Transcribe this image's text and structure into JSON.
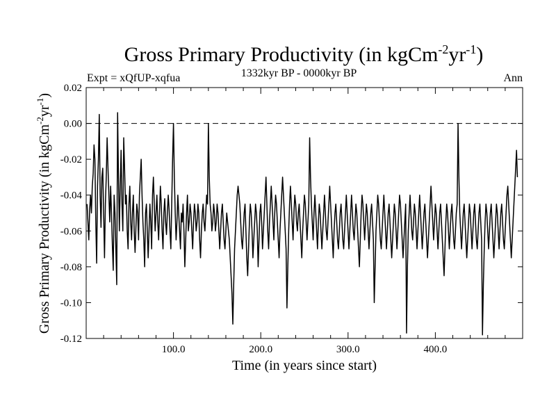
{
  "chart_data": {
    "type": "line",
    "title": "Gross Primary Productivity (in kgCm",
    "title_sup1": "-2",
    "title_mid": "yr",
    "title_sup2": "-1",
    "title_end": ")",
    "subtitle": "1332kyr BP - 0000kyr BP",
    "expt_label": "Expt = xQfUP-xqfua",
    "season_label": "Ann",
    "xlabel": "Time (in years since start)",
    "ylabel": "Gross Primary Productivity (in kgCm",
    "ylabel_sup1": "-2",
    "ylabel_mid": "yr",
    "ylabel_sup2": "-1",
    "ylabel_end": ")",
    "xlim": [
      0,
      500
    ],
    "ylim": [
      -0.12,
      0.02
    ],
    "xticks": [
      100,
      200,
      300,
      400
    ],
    "xtick_labels": [
      "100.0",
      "200.0",
      "300.0",
      "400.0"
    ],
    "yticks": [
      0.02,
      0.0,
      -0.02,
      -0.04,
      -0.06,
      -0.08,
      -0.1,
      -0.12
    ],
    "ytick_labels": [
      "0.02",
      "0.00",
      "-0.02",
      "-0.04",
      "-0.06",
      "-0.08",
      "-0.10",
      "-0.12"
    ],
    "reference_line": 0.0,
    "series": [
      {
        "name": "Ann",
        "x_start": 1,
        "x_step": 1,
        "values": [
          -0.045,
          -0.055,
          -0.065,
          -0.048,
          -0.04,
          -0.05,
          -0.035,
          -0.028,
          -0.012,
          -0.02,
          -0.055,
          -0.078,
          -0.035,
          -0.02,
          0.005,
          -0.04,
          -0.058,
          -0.03,
          -0.025,
          -0.05,
          -0.075,
          -0.045,
          -0.03,
          -0.008,
          -0.025,
          -0.04,
          -0.055,
          -0.035,
          -0.05,
          -0.068,
          -0.082,
          -0.04,
          -0.05,
          -0.07,
          -0.09,
          0.006,
          -0.03,
          -0.06,
          -0.035,
          -0.015,
          -0.045,
          -0.06,
          -0.008,
          -0.025,
          -0.045,
          -0.04,
          -0.06,
          -0.07,
          -0.045,
          -0.035,
          -0.055,
          -0.065,
          -0.05,
          -0.04,
          -0.06,
          -0.072,
          -0.058,
          -0.045,
          -0.05,
          -0.065,
          -0.04,
          -0.03,
          -0.02,
          -0.04,
          -0.055,
          -0.065,
          -0.08,
          -0.05,
          -0.045,
          -0.06,
          -0.075,
          -0.06,
          -0.045,
          -0.055,
          -0.07,
          -0.04,
          -0.03,
          -0.045,
          -0.06,
          -0.05,
          -0.04,
          -0.055,
          -0.065,
          -0.05,
          -0.035,
          -0.045,
          -0.06,
          -0.07,
          -0.05,
          -0.042,
          -0.055,
          -0.062,
          -0.05,
          -0.04,
          -0.048,
          -0.06,
          -0.07,
          -0.045,
          -0.02,
          0.0,
          -0.03,
          -0.05,
          -0.065,
          -0.055,
          -0.04,
          -0.05,
          -0.06,
          -0.07,
          -0.05,
          -0.055,
          -0.045,
          -0.06,
          -0.08,
          -0.065,
          -0.05,
          -0.04,
          -0.06,
          -0.055,
          -0.045,
          -0.05,
          -0.06,
          -0.07,
          -0.055,
          -0.045,
          -0.05,
          -0.06,
          -0.055,
          -0.045,
          -0.05,
          -0.065,
          -0.075,
          -0.06,
          -0.05,
          -0.045,
          -0.055,
          -0.06,
          -0.05,
          -0.04,
          -0.045,
          0.0,
          -0.03,
          -0.045,
          -0.05,
          -0.06,
          -0.055,
          -0.045,
          -0.05,
          -0.06,
          -0.055,
          -0.045,
          -0.05,
          -0.06,
          -0.07,
          -0.06,
          -0.05,
          -0.045,
          -0.055,
          -0.065,
          -0.07,
          -0.06,
          -0.05,
          -0.055,
          -0.06,
          -0.065,
          -0.075,
          -0.085,
          -0.095,
          -0.112,
          -0.09,
          -0.07,
          -0.06,
          -0.05,
          -0.04,
          -0.035,
          -0.04,
          -0.045,
          -0.055,
          -0.065,
          -0.07,
          -0.06,
          -0.05,
          -0.045,
          -0.06,
          -0.075,
          -0.085,
          -0.07,
          -0.055,
          -0.045,
          -0.05,
          -0.06,
          -0.075,
          -0.065,
          -0.055,
          -0.045,
          -0.05,
          -0.06,
          -0.08,
          -0.065,
          -0.05,
          -0.045,
          -0.055,
          -0.07,
          -0.06,
          -0.05,
          -0.04,
          -0.03,
          -0.045,
          -0.06,
          -0.07,
          -0.055,
          -0.045,
          -0.035,
          -0.045,
          -0.055,
          -0.065,
          -0.05,
          -0.04,
          -0.045,
          -0.055,
          -0.065,
          -0.075,
          -0.06,
          -0.05,
          -0.04,
          -0.03,
          -0.04,
          -0.05,
          -0.06,
          -0.07,
          -0.103,
          -0.08,
          -0.06,
          -0.045,
          -0.035,
          -0.045,
          -0.055,
          -0.065,
          -0.05,
          -0.04,
          -0.045,
          -0.055,
          -0.06,
          -0.05,
          -0.045,
          -0.055,
          -0.065,
          -0.075,
          -0.06,
          -0.05,
          -0.04,
          -0.045,
          -0.055,
          -0.065,
          -0.055,
          -0.045,
          -0.008,
          -0.03,
          -0.045,
          -0.055,
          -0.065,
          -0.05,
          -0.04,
          -0.05,
          -0.06,
          -0.07,
          -0.055,
          -0.045,
          -0.05,
          -0.06,
          -0.07,
          -0.06,
          -0.05,
          -0.04,
          -0.05,
          -0.06,
          -0.065,
          -0.055,
          -0.045,
          -0.035,
          -0.045,
          -0.055,
          -0.065,
          -0.075,
          -0.06,
          -0.05,
          -0.045,
          -0.055,
          -0.065,
          -0.07,
          -0.06,
          -0.05,
          -0.045,
          -0.055,
          -0.065,
          -0.07,
          -0.06,
          -0.05,
          -0.04,
          -0.05,
          -0.06,
          -0.07,
          -0.06,
          -0.05,
          -0.04,
          -0.05,
          -0.06,
          -0.065,
          -0.055,
          -0.045,
          -0.05,
          -0.06,
          -0.07,
          -0.08,
          -0.065,
          -0.05,
          -0.04,
          -0.045,
          -0.055,
          -0.065,
          -0.055,
          -0.045,
          -0.05,
          -0.06,
          -0.07,
          -0.06,
          -0.05,
          -0.045,
          -0.055,
          -0.065,
          -0.1,
          -0.08,
          -0.06,
          -0.05,
          -0.04,
          -0.045,
          -0.055,
          -0.065,
          -0.07,
          -0.06,
          -0.05,
          -0.04,
          -0.05,
          -0.06,
          -0.07,
          -0.06,
          -0.05,
          -0.045,
          -0.055,
          -0.065,
          -0.075,
          -0.065,
          -0.055,
          -0.045,
          -0.05,
          -0.06,
          -0.07,
          -0.06,
          -0.05,
          -0.04,
          -0.045,
          -0.055,
          -0.065,
          -0.075,
          -0.065,
          -0.055,
          -0.045,
          -0.117,
          -0.08,
          -0.06,
          -0.05,
          -0.04,
          -0.05,
          -0.06,
          -0.065,
          -0.055,
          -0.045,
          -0.05,
          -0.06,
          -0.07,
          -0.06,
          -0.05,
          -0.04,
          -0.05,
          -0.06,
          -0.07,
          -0.06,
          -0.05,
          -0.045,
          -0.055,
          -0.065,
          -0.075,
          -0.065,
          -0.055,
          -0.045,
          -0.035,
          -0.045,
          -0.055,
          -0.065,
          -0.055,
          -0.045,
          -0.05,
          -0.06,
          -0.07,
          -0.06,
          -0.05,
          -0.045,
          -0.055,
          -0.065,
          -0.075,
          -0.085,
          -0.07,
          -0.055,
          -0.045,
          -0.05,
          -0.06,
          -0.07,
          -0.06,
          -0.05,
          -0.045,
          -0.055,
          -0.065,
          -0.07,
          -0.06,
          -0.05,
          -0.045,
          0.0,
          -0.03,
          -0.05,
          -0.06,
          -0.07,
          -0.06,
          -0.05,
          -0.045,
          -0.055,
          -0.065,
          -0.075,
          -0.065,
          -0.055,
          -0.045,
          -0.05,
          -0.06,
          -0.07,
          -0.06,
          -0.05,
          -0.045,
          -0.055,
          -0.065,
          -0.07,
          -0.06,
          -0.05,
          -0.045,
          -0.055,
          -0.065,
          -0.118,
          -0.09,
          -0.07,
          -0.055,
          -0.045,
          -0.05,
          -0.06,
          -0.07,
          -0.06,
          -0.05,
          -0.045,
          -0.055,
          -0.065,
          -0.075,
          -0.065,
          -0.055,
          -0.045,
          -0.05,
          -0.06,
          -0.07,
          -0.06,
          -0.05,
          -0.045,
          -0.055,
          -0.065,
          -0.07,
          -0.06,
          -0.05,
          -0.04,
          -0.035,
          -0.045,
          -0.055,
          -0.065,
          -0.075,
          -0.065,
          -0.055,
          -0.045,
          -0.035,
          -0.025,
          -0.015,
          -0.03
        ]
      }
    ]
  }
}
